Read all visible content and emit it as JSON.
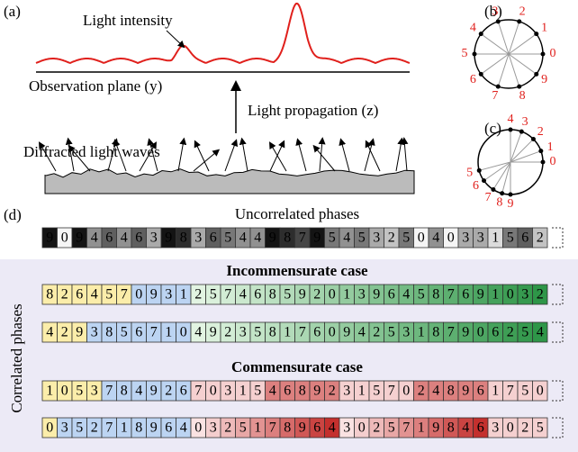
{
  "panel_a": {
    "label": "(a)",
    "intensity_label": "Light intensity",
    "plane_label": "Observation plane (y)",
    "propagation_label": "Light propagation (z)",
    "waves_label": "Diffracted light waves"
  },
  "panel_b": {
    "label": "(b)",
    "phases": [
      0,
      1,
      2,
      3,
      4,
      5,
      6,
      7,
      8,
      9
    ]
  },
  "panel_c": {
    "label": "(c)",
    "phases": [
      0,
      1,
      2,
      3,
      4,
      5,
      6,
      7,
      8,
      9
    ]
  },
  "panel_d": {
    "label": "(d)",
    "uncorrelated": {
      "title": "Uncorrelated phases",
      "digits": [
        9,
        0,
        9,
        4,
        6,
        4,
        6,
        3,
        9,
        8,
        3,
        6,
        5,
        4,
        4,
        9,
        8,
        7,
        9,
        5,
        4,
        5,
        3,
        2,
        5,
        0,
        4,
        0,
        3,
        3,
        1,
        5,
        6,
        2
      ]
    },
    "correlated_label": "Correlated phases",
    "incommensurate": {
      "title": "Incommensurate case",
      "rows": [
        [
          8,
          2,
          6,
          4,
          5,
          7,
          0,
          9,
          3,
          1,
          2,
          5,
          7,
          4,
          6,
          8,
          5,
          9,
          2,
          0,
          1,
          3,
          9,
          6,
          4,
          5,
          8,
          7,
          6,
          9,
          1,
          0,
          3,
          2
        ],
        [
          4,
          2,
          9,
          3,
          8,
          5,
          6,
          7,
          1,
          0,
          4,
          9,
          2,
          3,
          5,
          8,
          1,
          7,
          6,
          0,
          9,
          4,
          2,
          5,
          3,
          1,
          8,
          7,
          9,
          0,
          6,
          2,
          5,
          4
        ]
      ]
    },
    "commensurate": {
      "title": "Commensurate case",
      "rows": [
        [
          1,
          0,
          5,
          3,
          7,
          8,
          4,
          9,
          2,
          6,
          7,
          0,
          3,
          1,
          5,
          4,
          6,
          8,
          9,
          2,
          3,
          1,
          5,
          7,
          0,
          2,
          4,
          8,
          9,
          6,
          1,
          7,
          5,
          0
        ],
        [
          0,
          3,
          5,
          2,
          7,
          1,
          8,
          9,
          6,
          4,
          0,
          3,
          2,
          5,
          1,
          7,
          8,
          9,
          6,
          4,
          3,
          0,
          2,
          5,
          7,
          1,
          9,
          8,
          4,
          6,
          3,
          0,
          2,
          5
        ]
      ]
    }
  }
}
